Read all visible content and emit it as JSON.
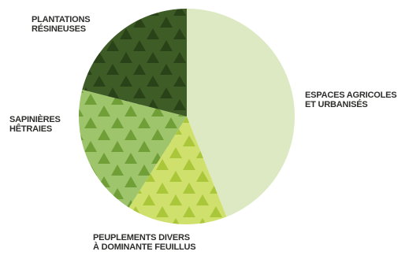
{
  "chart_data": {
    "type": "pie",
    "title": "",
    "start_angle_deg": 0,
    "direction": "clockwise",
    "slices": [
      {
        "label_lines": [
          "ESPACES AGRICOLES",
          "ET URBANISÉS"
        ],
        "value": 44,
        "color": "#dde9c2",
        "pattern": "none"
      },
      {
        "label_lines": [
          "PEUPLEMENTS DIVERS",
          "À DOMINANTE FEUILLUS"
        ],
        "value": 15,
        "color": "#cfe06d",
        "pattern": "trees",
        "tree_color": "#aac639"
      },
      {
        "label_lines": [
          "SAPINIÈRES",
          "HÊTRAIES"
        ],
        "value": 20,
        "color": "#9ec46c",
        "pattern": "trees",
        "tree_color": "#6f9f36"
      },
      {
        "label_lines": [
          "PLANTATIONS",
          "RÉSINEUSES"
        ],
        "value": 21,
        "color": "#3e5c25",
        "pattern": "trees",
        "tree_color": "#2a4217"
      }
    ]
  }
}
